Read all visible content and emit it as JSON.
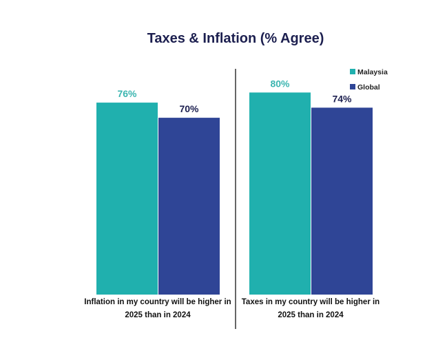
{
  "chart_data": {
    "type": "bar",
    "title": "Taxes & Inflation (% Agree)",
    "categories": [
      [
        "Inflation in my country will be higher in",
        "2025 than in 2024"
      ],
      [
        "Taxes in my country will be higher in",
        "2025 than in 2024"
      ]
    ],
    "series": [
      {
        "name": "Malaysia",
        "values": [
          76,
          80
        ],
        "labels": [
          "76%",
          "80%"
        ],
        "color": "#20b0ae",
        "label_color": "#3bb5b0"
      },
      {
        "name": "Global",
        "values": [
          70,
          74
        ],
        "labels": [
          "70%",
          "74%"
        ],
        "color": "#2f4596",
        "label_color": "#1c1f4f"
      }
    ],
    "ylim": [
      0,
      100
    ],
    "legend": "top-right"
  }
}
